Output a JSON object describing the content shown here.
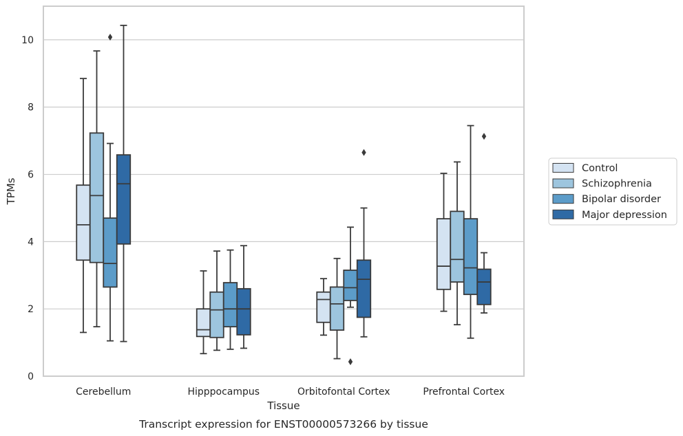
{
  "chart_data": {
    "type": "box",
    "title": "",
    "caption": "Transcript expression for ENST00000573266 by tissue",
    "xlabel": "Tissue",
    "ylabel": "TPMs",
    "ylim": [
      0,
      11
    ],
    "yticks": [
      0,
      2,
      4,
      6,
      8,
      10
    ],
    "grid": "horizontal",
    "legend_placement": "right",
    "categories": [
      "Cerebellum",
      "Hipppocampus",
      "Orbitofontal Cortex",
      "Prefrontal Cortex"
    ],
    "series": [
      {
        "name": "Control",
        "color": "#d4e3f2",
        "boxes": [
          {
            "whislo": 1.3,
            "q1": 3.45,
            "med": 4.5,
            "q3": 5.68,
            "whishi": 8.85,
            "fliers": []
          },
          {
            "whislo": 0.67,
            "q1": 1.18,
            "med": 1.38,
            "q3": 2.0,
            "whishi": 3.13,
            "fliers": []
          },
          {
            "whislo": 1.22,
            "q1": 1.6,
            "med": 2.28,
            "q3": 2.5,
            "whishi": 2.9,
            "fliers": []
          },
          {
            "whislo": 1.93,
            "q1": 2.58,
            "med": 3.27,
            "q3": 4.68,
            "whishi": 6.03,
            "fliers": []
          }
        ]
      },
      {
        "name": "Schizophrenia",
        "color": "#9dc5de",
        "boxes": [
          {
            "whislo": 1.47,
            "q1": 3.38,
            "med": 5.37,
            "q3": 7.23,
            "whishi": 9.67,
            "fliers": []
          },
          {
            "whislo": 0.77,
            "q1": 1.15,
            "med": 1.97,
            "q3": 2.5,
            "whishi": 3.72,
            "fliers": []
          },
          {
            "whislo": 0.52,
            "q1": 1.37,
            "med": 2.15,
            "q3": 2.65,
            "whishi": 3.5,
            "fliers": []
          },
          {
            "whislo": 1.53,
            "q1": 2.8,
            "med": 3.47,
            "q3": 4.9,
            "whishi": 6.37,
            "fliers": []
          }
        ]
      },
      {
        "name": "Bipolar disorder",
        "color": "#5c9cc9",
        "boxes": [
          {
            "whislo": 1.05,
            "q1": 2.65,
            "med": 3.35,
            "q3": 4.7,
            "whishi": 6.92,
            "fliers": [
              10.08
            ]
          },
          {
            "whislo": 0.8,
            "q1": 1.47,
            "med": 2.0,
            "q3": 2.78,
            "whishi": 3.75,
            "fliers": []
          },
          {
            "whislo": 2.05,
            "q1": 2.25,
            "med": 2.63,
            "q3": 3.15,
            "whishi": 4.43,
            "fliers": [
              0.43
            ]
          },
          {
            "whislo": 1.13,
            "q1": 2.43,
            "med": 3.22,
            "q3": 4.68,
            "whishi": 7.45,
            "fliers": []
          }
        ]
      },
      {
        "name": "Major depression",
        "color": "#2f6aa5",
        "boxes": [
          {
            "whislo": 1.03,
            "q1": 3.93,
            "med": 5.72,
            "q3": 6.58,
            "whishi": 10.43,
            "fliers": []
          },
          {
            "whislo": 0.83,
            "q1": 1.23,
            "med": 2.0,
            "q3": 2.6,
            "whishi": 3.88,
            "fliers": []
          },
          {
            "whislo": 1.17,
            "q1": 1.75,
            "med": 2.88,
            "q3": 3.45,
            "whishi": 5.0,
            "fliers": [
              6.65
            ]
          },
          {
            "whislo": 1.88,
            "q1": 2.13,
            "med": 2.8,
            "q3": 3.18,
            "whishi": 3.67,
            "fliers": [
              7.13
            ]
          }
        ]
      }
    ]
  }
}
